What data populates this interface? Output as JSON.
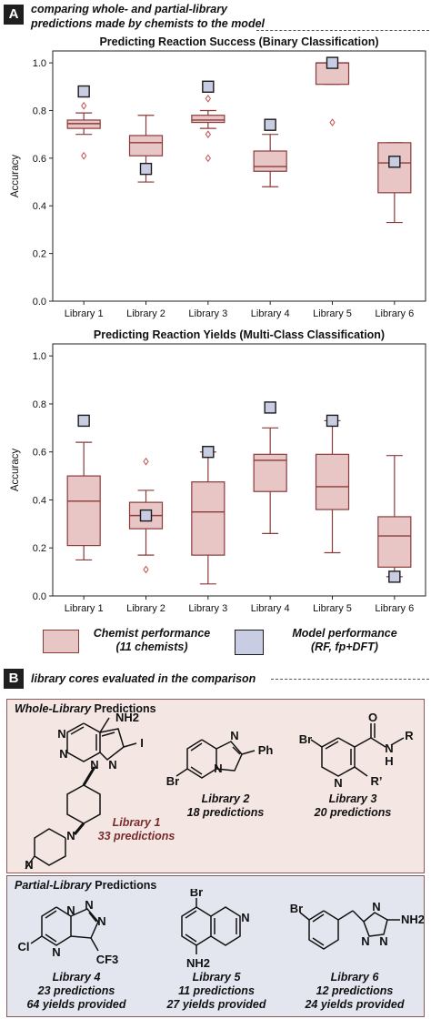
{
  "panel_a": {
    "badge": "A",
    "intro_line1": "comparing whole- and partial-library",
    "intro_line2": "predictions made by chemists to the model"
  },
  "legend": {
    "chemist_line1": "Chemist performance",
    "chemist_line2": "(11 chemists)",
    "model_line1": "Model performance",
    "model_line2": "(RF, fp+DFT)"
  },
  "colors": {
    "box_fill": "#e8c6c6",
    "box_stroke": "#8b3a3a",
    "model_fill": "#c9cde3",
    "model_stroke": "#1b1b1b",
    "outlier": "#c0504d",
    "whole_panel_bg": "#f4e6e3",
    "partial_panel_bg": "#e4e6ef"
  },
  "chart_data": [
    {
      "type": "box",
      "title": "Predicting Reaction Success (Binary Classification)",
      "ylabel": "Accuracy",
      "ylim": [
        0,
        1.05
      ],
      "yticks": [
        "0.0",
        "0.2",
        "0.4",
        "0.6",
        "0.8",
        "1.0"
      ],
      "categories": [
        "Library 1",
        "Library 2",
        "Library 3",
        "Library 4",
        "Library 5",
        "Library 6"
      ],
      "boxes": [
        {
          "whisker_low": 0.7,
          "q1": 0.725,
          "median": 0.745,
          "q3": 0.76,
          "whisker_high": 0.79,
          "outliers": [
            0.82,
            0.61
          ]
        },
        {
          "whisker_low": 0.5,
          "q1": 0.61,
          "median": 0.665,
          "q3": 0.695,
          "whisker_high": 0.78,
          "outliers": []
        },
        {
          "whisker_low": 0.725,
          "q1": 0.75,
          "median": 0.76,
          "q3": 0.78,
          "whisker_high": 0.8,
          "outliers": [
            0.85,
            0.7,
            0.6
          ]
        },
        {
          "whisker_low": 0.48,
          "q1": 0.545,
          "median": 0.565,
          "q3": 0.63,
          "whisker_high": 0.7,
          "outliers": []
        },
        {
          "whisker_low": 0.91,
          "q1": 0.91,
          "median": 1.0,
          "q3": 1.0,
          "whisker_high": 1.0,
          "outliers": [
            0.75
          ]
        },
        {
          "whisker_low": 0.33,
          "q1": 0.455,
          "median": 0.58,
          "q3": 0.665,
          "whisker_high": 0.665,
          "outliers": []
        }
      ],
      "model": [
        0.88,
        0.555,
        0.9,
        0.74,
        1.0,
        0.585
      ]
    },
    {
      "type": "box",
      "title": "Predicting Reaction Yields (Multi-Class Classification)",
      "ylabel": "Accuracy",
      "ylim": [
        0,
        1.05
      ],
      "yticks": [
        "0.0",
        "0.2",
        "0.4",
        "0.6",
        "0.8",
        "1.0"
      ],
      "categories": [
        "Library 1",
        "Library 2",
        "Library 3",
        "Library 4",
        "Library 5",
        "Library 6"
      ],
      "boxes": [
        {
          "whisker_low": 0.15,
          "q1": 0.21,
          "median": 0.395,
          "q3": 0.5,
          "whisker_high": 0.64,
          "outliers": []
        },
        {
          "whisker_low": 0.17,
          "q1": 0.28,
          "median": 0.335,
          "q3": 0.39,
          "whisker_high": 0.44,
          "outliers": [
            0.56,
            0.11
          ]
        },
        {
          "whisker_low": 0.05,
          "q1": 0.17,
          "median": 0.35,
          "q3": 0.475,
          "whisker_high": 0.6,
          "outliers": []
        },
        {
          "whisker_low": 0.26,
          "q1": 0.435,
          "median": 0.565,
          "q3": 0.59,
          "whisker_high": 0.7,
          "outliers": []
        },
        {
          "whisker_low": 0.18,
          "q1": 0.36,
          "median": 0.455,
          "q3": 0.59,
          "whisker_high": 0.73,
          "outliers": []
        },
        {
          "whisker_low": 0.08,
          "q1": 0.12,
          "median": 0.25,
          "q3": 0.33,
          "whisker_high": 0.585,
          "outliers": []
        }
      ],
      "model": [
        0.73,
        0.335,
        0.6,
        0.785,
        0.73,
        0.08
      ]
    }
  ],
  "panel_b": {
    "badge": "B",
    "intro": "library cores evaluated in the comparison",
    "whole": {
      "title_italic": "Whole-Library",
      "title_rest": " Predictions",
      "items": [
        {
          "name": "Library 1",
          "predictions": "33 predictions",
          "yields": ""
        },
        {
          "name": "Library 2",
          "predictions": "18 predictions",
          "yields": ""
        },
        {
          "name": "Library 3",
          "predictions": "20 predictions",
          "yields": ""
        }
      ]
    },
    "partial": {
      "title_italic": "Partial-Library",
      "title_rest": " Predictions",
      "items": [
        {
          "name": "Library 4",
          "predictions": "23 predictions",
          "yields": "64 yields provided"
        },
        {
          "name": "Library 5",
          "predictions": "11 predictions",
          "yields": "27 yields provided"
        },
        {
          "name": "Library 6",
          "predictions": "12 predictions",
          "yields": "24 yields provided"
        }
      ]
    },
    "structure_labels": {
      "nh2": "NH2",
      "i": "I",
      "n": "N",
      "br": "Br",
      "ph": "Ph",
      "o": "O",
      "h": "H",
      "r": "R",
      "rprime": "R’",
      "cl": "Cl",
      "cf3": "CF3"
    }
  }
}
